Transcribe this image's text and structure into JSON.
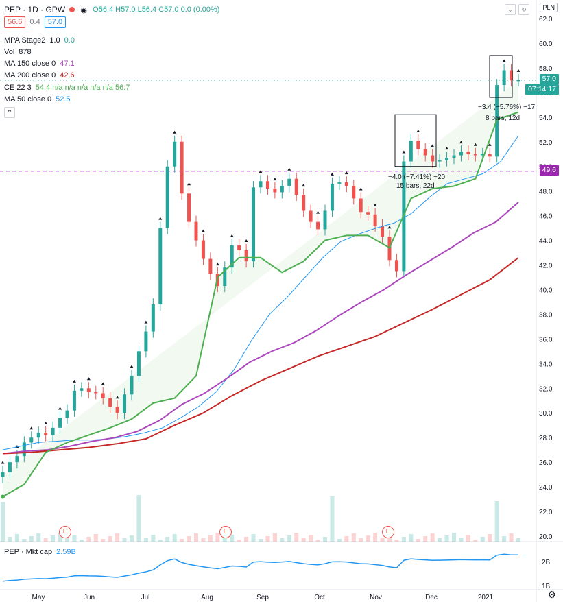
{
  "header": {
    "symbol": "PEP · 1D · GPW",
    "ohlc": "O56.4 H57.0 L56.4 C57.0 0.0 (0.00%)",
    "bid": "56.6",
    "spread": "0.4",
    "ask": "57.0"
  },
  "indicators": [
    {
      "name": "MPA Stage2",
      "params": "1.0",
      "value": "0.0",
      "color": "#26a69a"
    },
    {
      "name": "Vol",
      "params": "",
      "value": "878",
      "color": "#131722"
    },
    {
      "name": "MA 150 close 0",
      "params": "",
      "value": "47.1",
      "color": "#ab47bc"
    },
    {
      "name": "MA 200 close 0",
      "params": "",
      "value": "42.6",
      "color": "#c62828"
    },
    {
      "name": "CE 22 3",
      "params": "",
      "value": "54.4 n/a n/a n/a n/a n/a 56.7",
      "color": "#4caf50"
    },
    {
      "name": "MA 50 close 0",
      "params": "",
      "value": "52.5",
      "color": "#2196f3"
    }
  ],
  "price_labels": {
    "last": "57.0",
    "countdown": "07:14:17",
    "line": "49.6",
    "currency": "PLN"
  },
  "annotations": {
    "box1_change": "−4.0 (−7.41%) −20",
    "box1_bars": "15 bars, 22d",
    "box2_change": "−3.4 (−5.76%) −17",
    "box2_bars": "8 bars, 12d"
  },
  "earnings_label": "E",
  "lower_pane": {
    "title": "PEP · Mkt cap",
    "value": "2.59B",
    "ticks": [
      "2B",
      "1B"
    ]
  },
  "colors": {
    "up": "#26a69a",
    "down": "#ef5350",
    "ma50": "#2196f3",
    "ma150": "#ab47bc",
    "ma200": "#c62828",
    "stop": "#4caf50",
    "hline": "#b64fd6"
  },
  "chart_data": {
    "type": "line",
    "title": "",
    "x_ticks": [
      "May",
      "Jun",
      "Jul",
      "Aug",
      "Sep",
      "Oct",
      "Nov",
      "Dec",
      "2021"
    ],
    "y_ticks": [
      "62.0",
      "60.0",
      "58.0",
      "56.0",
      "54.0",
      "52.0",
      "50.0",
      "48.0",
      "46.0",
      "44.0",
      "42.0",
      "40.0",
      "38.0",
      "36.0",
      "34.0",
      "32.0",
      "30.0",
      "28.0",
      "26.0",
      "24.0",
      "22.0",
      "20.0"
    ],
    "ylim": [
      19.8,
      63
    ],
    "horizontal_line": 49.6,
    "last_price": 57.0,
    "close": [
      25.2,
      26.0,
      26.5,
      27.6,
      28.0,
      28.4,
      28.2,
      28.8,
      29.6,
      30.2,
      31.8,
      32.0,
      31.7,
      31.6,
      31.2,
      30.5,
      30.0,
      31.5,
      33.0,
      35.0,
      36.6,
      38.8,
      45.0,
      50.0,
      52.0,
      47.8,
      45.5,
      44.0,
      42.5,
      41.3,
      40.3,
      41.8,
      43.6,
      43.2,
      42.3,
      48.3,
      48.8,
      48.2,
      47.9,
      48.4,
      49.0,
      47.7,
      46.4,
      45.5,
      44.9,
      46.4,
      48.6,
      48.7,
      48.4,
      47.4,
      46.3,
      46.1,
      45.2,
      44.3,
      42.4,
      41.5,
      50.4,
      52.1,
      51.4,
      50.9,
      50.4,
      50.5,
      50.7,
      50.9,
      51.2,
      51.0,
      50.9,
      51.0,
      50.8,
      56.6,
      57.8,
      57.0,
      57.0
    ],
    "series": [
      {
        "name": "MA 50",
        "color": "#2196f3",
        "values": [
          27.0,
          27.3,
          27.6,
          27.7,
          27.8,
          27.8,
          27.9,
          28.1,
          28.4,
          28.8,
          29.6,
          30.5,
          31.7,
          33.5,
          35.9,
          38.0,
          39.4,
          41.0,
          42.6,
          43.9,
          44.5,
          45.0,
          45.4,
          46.2,
          47.5,
          48.6,
          49.0,
          49.4,
          50.4,
          52.5
        ]
      },
      {
        "name": "MA 150",
        "color": "#ab47bc",
        "values": [
          26.7,
          26.9,
          27.0,
          27.3,
          27.7,
          28.0,
          28.5,
          29.4,
          30.7,
          31.6,
          32.8,
          34.1,
          35.0,
          35.7,
          36.7,
          37.9,
          39.0,
          40.0,
          41.2,
          42.3,
          43.4,
          44.6,
          45.5,
          47.1
        ]
      },
      {
        "name": "MA 200",
        "color": "#c62828",
        "values": [
          26.7,
          26.8,
          27.0,
          27.2,
          27.5,
          27.9,
          29.0,
          30.0,
          31.4,
          32.6,
          33.6,
          34.6,
          35.4,
          36.2,
          37.3,
          38.4,
          39.6,
          40.8,
          42.6
        ]
      },
      {
        "name": "CE 22 3",
        "color": "#4caf50",
        "values": [
          23.2,
          24.2,
          26.8,
          27.6,
          28.2,
          28.8,
          29.5,
          30.8,
          31.2,
          33.0,
          41.0,
          42.6,
          42.6,
          41.4,
          42.3,
          44.0,
          44.4,
          44.4,
          43.4,
          47.4,
          48.2,
          48.4,
          49.0,
          53.8,
          54.4
        ]
      }
    ],
    "mkt_cap_label": "2.59B"
  }
}
